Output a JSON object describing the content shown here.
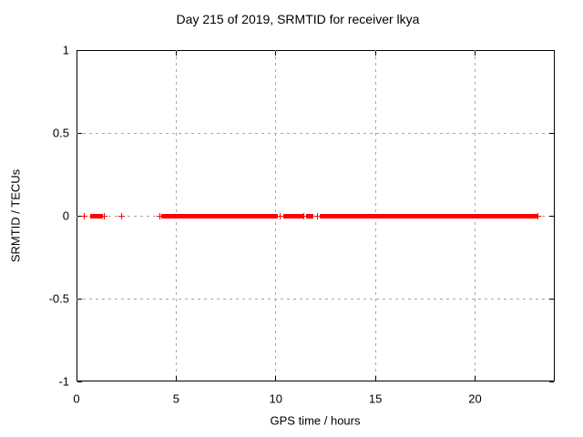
{
  "chart_data": {
    "type": "scatter",
    "title": "Day 215 of 2019, SRMTID for receiver lkya",
    "xlabel": "GPS time / hours",
    "ylabel": "SRMTID / TECUs",
    "xlim": [
      0,
      24
    ],
    "ylim": [
      -1,
      1
    ],
    "xticks": [
      0,
      5,
      10,
      15,
      20
    ],
    "yticks": [
      -1,
      -0.5,
      0,
      0.5,
      1
    ],
    "grid": true,
    "legend_position": "none",
    "marker": "plus",
    "color": "#ff0000",
    "series": [
      {
        "name": "SRMTID",
        "y": 0,
        "x_segments": [
          [
            0.37,
            0.37
          ],
          [
            0.78,
            1.23
          ],
          [
            1.39,
            1.39
          ],
          [
            2.24,
            2.24
          ],
          [
            4.2,
            4.2
          ],
          [
            4.35,
            10.0
          ],
          [
            10.2,
            10.2
          ],
          [
            10.45,
            10.75
          ],
          [
            10.82,
            11.3
          ],
          [
            11.42,
            11.42
          ],
          [
            11.6,
            11.8
          ],
          [
            12.1,
            12.1
          ],
          [
            12.28,
            12.68
          ],
          [
            12.73,
            23.06
          ],
          [
            23.15,
            23.15
          ]
        ]
      }
    ]
  }
}
